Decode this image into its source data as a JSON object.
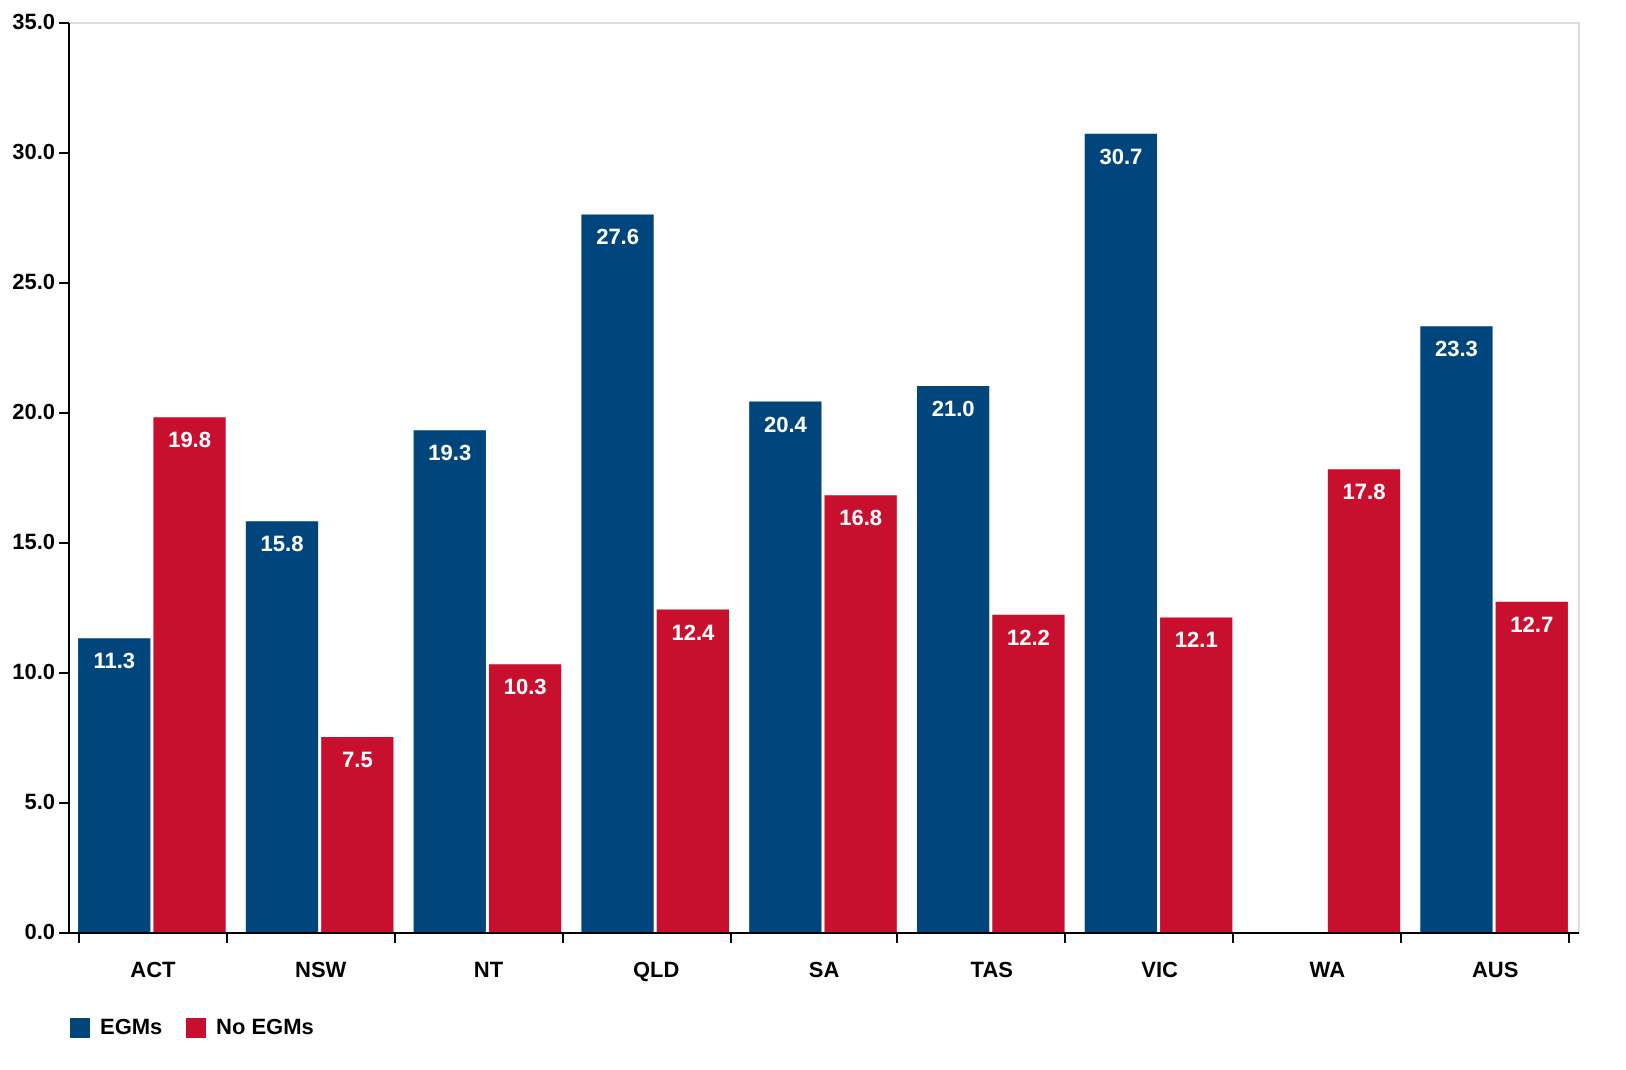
{
  "chart_data": {
    "type": "bar",
    "categories": [
      "ACT",
      "NSW",
      "NT",
      "QLD",
      "SA",
      "TAS",
      "VIC",
      "WA",
      "AUS"
    ],
    "series": [
      {
        "name": "EGMs",
        "color": "#00457c",
        "values": [
          11.3,
          15.8,
          19.3,
          27.6,
          20.4,
          21.0,
          30.7,
          null,
          23.3
        ],
        "value_labels": [
          "11.3",
          "15.8",
          "19.3",
          "27.6",
          "20.4",
          "21.0",
          "30.7",
          null,
          "23.3"
        ]
      },
      {
        "name": "No EGMs",
        "color": "#c8102e",
        "values": [
          19.8,
          7.5,
          10.3,
          12.4,
          16.8,
          12.2,
          12.1,
          17.8,
          12.7
        ],
        "value_labels": [
          "19.8",
          "7.5",
          "10.3",
          "12.4",
          "16.8",
          "12.2",
          "12.1",
          "17.8",
          "12.7"
        ]
      }
    ],
    "ylim": [
      0,
      35
    ],
    "yticks": [
      {
        "value": 0,
        "label": "0.0"
      },
      {
        "value": 5,
        "label": "5.0"
      },
      {
        "value": 10,
        "label": "10.0"
      },
      {
        "value": 15,
        "label": "15.0"
      },
      {
        "value": 20,
        "label": "20.0"
      },
      {
        "value": 25,
        "label": "25.0"
      },
      {
        "value": 30,
        "label": "30.0"
      },
      {
        "value": 35,
        "label": "35.0"
      }
    ],
    "legend": "bottom",
    "grid": false
  }
}
